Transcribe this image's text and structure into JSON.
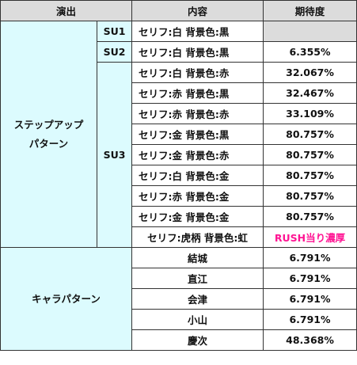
{
  "header": {
    "col1": "演出",
    "col2": "内容",
    "col3": "期待度"
  },
  "stepup": {
    "category": [
      "ステップアップ",
      "パターン"
    ],
    "su1": {
      "label": "SU1",
      "rows": [
        {
          "content": "セリフ:白 背景色:黒",
          "value": ""
        }
      ]
    },
    "su2": {
      "label": "SU2",
      "rows": [
        {
          "content": "セリフ:白 背景色:黒",
          "value": "6.355%"
        }
      ]
    },
    "su3": {
      "label": "SU3",
      "rows": [
        {
          "content": "セリフ:白 背景色:赤",
          "value": "32.067%"
        },
        {
          "content": "セリフ:赤 背景色:黒",
          "value": "32.467%"
        },
        {
          "content": "セリフ:赤 背景色:赤",
          "value": "33.109%"
        },
        {
          "content": "セリフ:金 背景色:黒",
          "value": "80.757%"
        },
        {
          "content": "セリフ:金 背景色:赤",
          "value": "80.757%"
        },
        {
          "content": "セリフ:白 背景色:金",
          "value": "80.757%"
        },
        {
          "content": "セリフ:赤 背景色:金",
          "value": "80.757%"
        },
        {
          "content": "セリフ:金 背景色:金",
          "value": "80.757%"
        },
        {
          "content": "セリフ:虎柄 背景色:虹",
          "value": "RUSH当り濃厚"
        }
      ]
    }
  },
  "chara": {
    "category": "キャラパターン",
    "rows": [
      {
        "name": "結城",
        "value": "6.791%"
      },
      {
        "name": "直江",
        "value": "6.791%"
      },
      {
        "name": "会津",
        "value": "6.791%"
      },
      {
        "name": "小山",
        "value": "6.791%"
      },
      {
        "name": "慶次",
        "value": "48.368%"
      }
    ]
  },
  "colors": {
    "header_bg": "#dcdcdc",
    "category_bg": "#dcfbfe",
    "highlight_text": "#ff1493"
  }
}
